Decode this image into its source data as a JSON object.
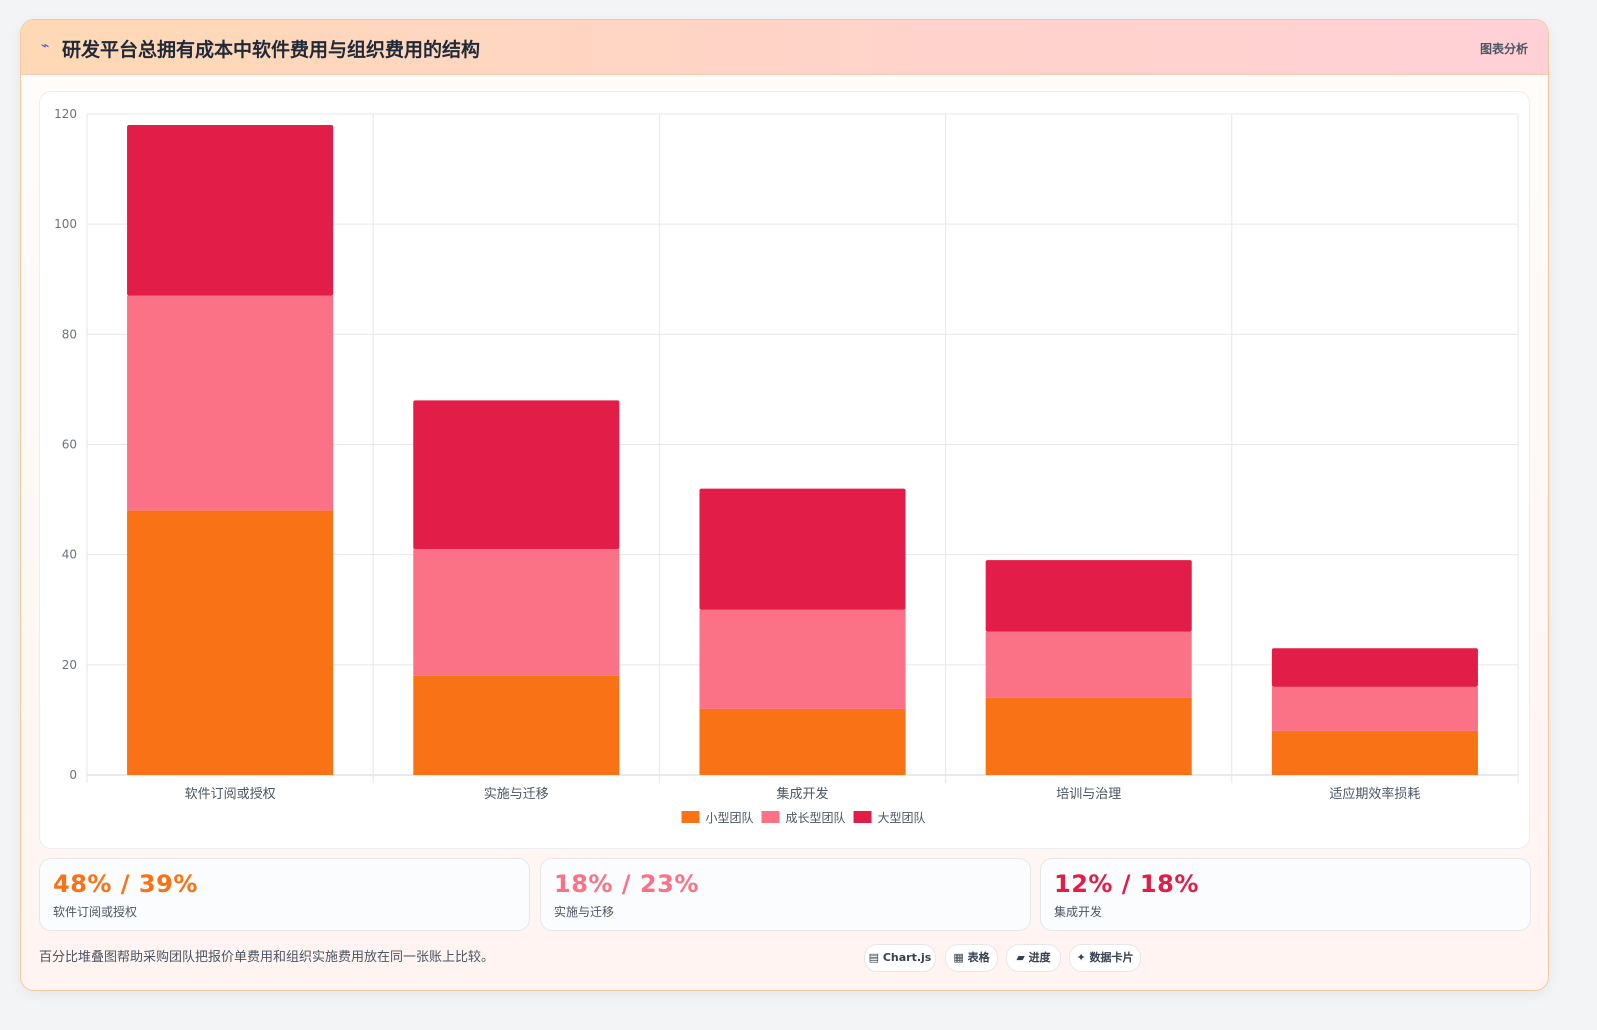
{
  "header": {
    "icon": "bolt-icon",
    "title": "研发平台总拥有成本中软件费用与组织费用的结构",
    "badge": "图表分析"
  },
  "chart_data": {
    "type": "bar",
    "stacked": true,
    "categories": [
      "软件订阅或授权",
      "实施与迁移",
      "集成开发",
      "培训与治理",
      "适应期效率损耗"
    ],
    "series": [
      {
        "name": "小型团队",
        "color": "#f97316",
        "values": [
          48,
          18,
          12,
          14,
          8
        ]
      },
      {
        "name": "成长型团队",
        "color": "#fb7185",
        "values": [
          39,
          23,
          18,
          12,
          8
        ]
      },
      {
        "name": "大型团队",
        "color": "#e11d48",
        "values": [
          31,
          27,
          22,
          13,
          7
        ]
      }
    ],
    "ylim": [
      0,
      120
    ],
    "yticks": [
      0,
      20,
      40,
      60,
      80,
      100,
      120
    ],
    "grid": true,
    "legend": "bottom"
  },
  "stats": [
    {
      "value": "48% / 39%",
      "label": "软件订阅或授权",
      "color": "#f97316"
    },
    {
      "value": "18% / 23%",
      "label": "实施与迁移",
      "color": "#fb7185"
    },
    {
      "value": "12% / 18%",
      "label": "集成开发",
      "color": "#e11d48"
    }
  ],
  "footnote": "百分比堆叠图帮助采购团队把报价单费用和组织实施费用放在同一张账上比较。",
  "tags": [
    "▤ Chart.js",
    "▦ 表格",
    "▰ 进度",
    "✦ 数据卡片"
  ]
}
